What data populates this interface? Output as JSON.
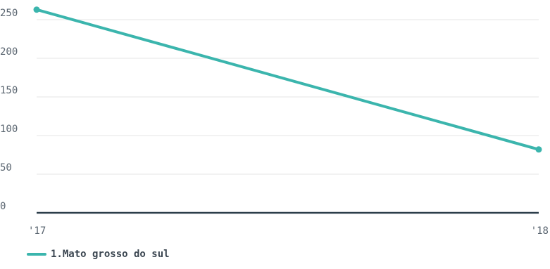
{
  "chart_data": {
    "type": "line",
    "categories": [
      "'17",
      "'18"
    ],
    "series": [
      {
        "name": "1.Mato grosso do sul",
        "values": [
          263,
          82
        ],
        "color": "#3bb5ad"
      }
    ],
    "ylim": [
      0,
      265
    ],
    "yticks": [
      0,
      50,
      100,
      150,
      200,
      250
    ],
    "grid": true,
    "legend": "bottom-left",
    "colors": {
      "gridline": "#e6e6e6",
      "baseline": "#2c3e4a",
      "tick_text": "#5a6570"
    }
  }
}
